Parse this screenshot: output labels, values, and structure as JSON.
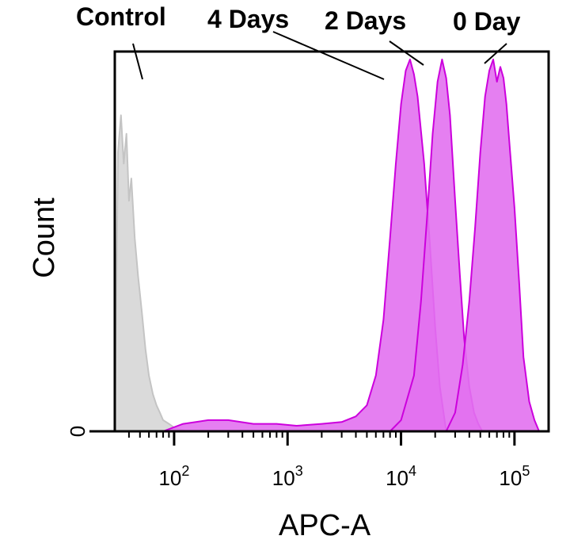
{
  "chart_data": {
    "type": "area",
    "xlabel": "APC-A",
    "ylabel": "Count",
    "x_scale": "log",
    "xlim": [
      30,
      200000
    ],
    "ylim": [
      0,
      100
    ],
    "x_ticks": [
      {
        "value": 100,
        "base": "10",
        "exp": "2"
      },
      {
        "value": 1000,
        "base": "10",
        "exp": "3"
      },
      {
        "value": 10000,
        "base": "10",
        "exp": "4"
      },
      {
        "value": 100000,
        "base": "10",
        "exp": "5"
      }
    ],
    "y_ticks": [
      {
        "value": 0,
        "label": "0"
      }
    ],
    "grid": false,
    "series": [
      {
        "name": "Control",
        "color": "#d6d6d6",
        "stroke": "#c4c4c4",
        "x": [
          30,
          32,
          34,
          36,
          38,
          40,
          42,
          45,
          48,
          52,
          56,
          60,
          65,
          70,
          75,
          80,
          90,
          100,
          115,
          130
        ],
        "y": [
          0,
          75,
          85,
          72,
          80,
          62,
          68,
          52,
          42,
          32,
          22,
          15,
          10,
          7,
          5,
          3,
          2,
          1,
          0.5,
          0
        ]
      },
      {
        "name": "4 Days",
        "color": "#e271ef",
        "stroke": "#cc00dd",
        "x": [
          80,
          120,
          200,
          300,
          500,
          800,
          1200,
          2000,
          3000,
          4000,
          5000,
          6000,
          7000,
          8000,
          9000,
          10000,
          11000,
          12000,
          13000,
          14000,
          16000,
          18000,
          20000,
          22000,
          25000
        ],
        "y": [
          0,
          2,
          3,
          3,
          2,
          2,
          1.5,
          2,
          2.5,
          4,
          7,
          15,
          30,
          52,
          72,
          88,
          97,
          100,
          96,
          90,
          72,
          50,
          28,
          12,
          0
        ]
      },
      {
        "name": "2 Days",
        "color": "#e271ef",
        "stroke": "#cc00dd",
        "x": [
          8000,
          10000,
          13000,
          15000,
          17000,
          19000,
          21000,
          23000,
          25000,
          27000,
          30000,
          33000,
          36000,
          40000,
          44000,
          48000,
          52000
        ],
        "y": [
          0,
          3,
          15,
          35,
          58,
          80,
          94,
          100,
          95,
          85,
          62,
          42,
          25,
          12,
          5,
          2,
          0
        ]
      },
      {
        "name": "0 Day",
        "color": "#e271ef",
        "stroke": "#cc00dd",
        "x": [
          25000,
          30000,
          35000,
          40000,
          45000,
          50000,
          55000,
          60000,
          65000,
          70000,
          75000,
          80000,
          85000,
          90000,
          100000,
          110000,
          120000,
          135000,
          150000,
          165000
        ],
        "y": [
          0,
          5,
          18,
          35,
          55,
          75,
          90,
          97,
          100,
          94,
          98,
          95,
          88,
          78,
          60,
          40,
          20,
          8,
          3,
          0
        ]
      }
    ]
  }
}
